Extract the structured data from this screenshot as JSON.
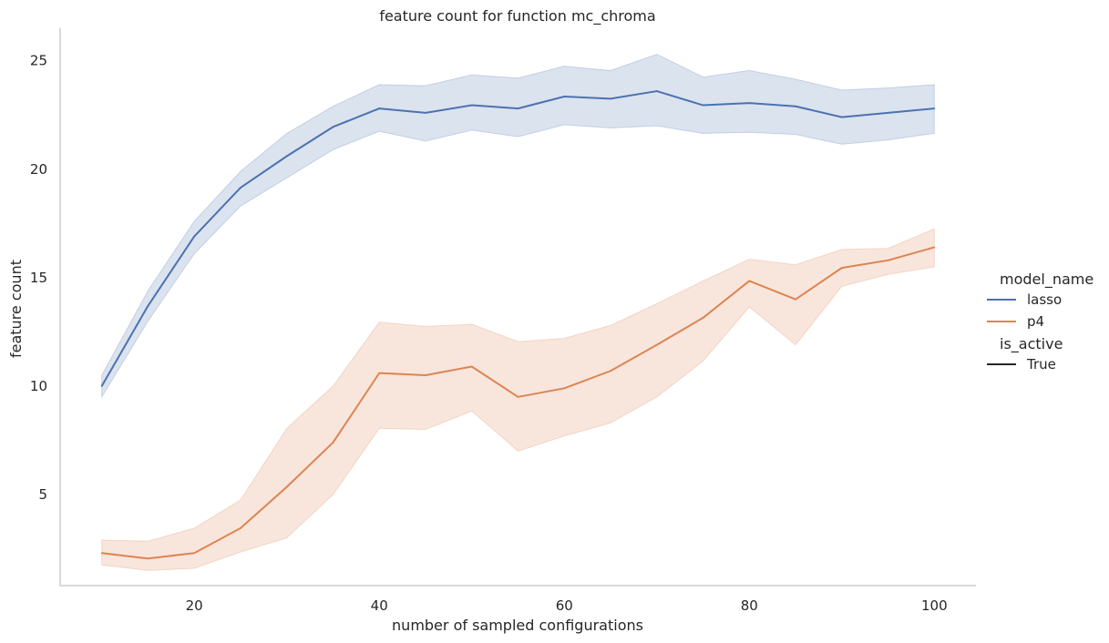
{
  "chart_data": {
    "type": "line",
    "title": "feature count for function mc_chroma",
    "xlabel": "number of sampled configurations",
    "ylabel": "feature count",
    "xlim": [
      5.5,
      104.5
    ],
    "ylim": [
      0.8,
      26.5
    ],
    "xticks": [
      20,
      40,
      60,
      80,
      100
    ],
    "yticks": [
      5,
      10,
      15,
      20,
      25
    ],
    "grid": false,
    "legend_placement": "right",
    "legend": {
      "hue_title": "model_name",
      "style_title": "is_active",
      "style_entries": [
        "True"
      ]
    },
    "x": [
      10,
      15,
      20,
      25,
      30,
      35,
      40,
      45,
      50,
      55,
      60,
      65,
      70,
      75,
      80,
      85,
      90,
      95,
      100
    ],
    "series": [
      {
        "name": "lasso",
        "color": "#4c72b0",
        "values": [
          10.0,
          13.7,
          16.9,
          19.15,
          20.6,
          21.95,
          22.8,
          22.6,
          22.95,
          22.8,
          23.35,
          23.25,
          23.6,
          22.95,
          23.05,
          22.9,
          22.4,
          22.6,
          22.8
        ],
        "ci_low": [
          9.5,
          13.0,
          16.1,
          18.3,
          19.6,
          20.9,
          21.75,
          21.3,
          21.8,
          21.5,
          22.05,
          21.9,
          22.0,
          21.65,
          21.7,
          21.6,
          21.15,
          21.35,
          21.65
        ],
        "ci_high": [
          10.5,
          14.4,
          17.6,
          19.9,
          21.65,
          22.9,
          23.9,
          23.85,
          24.35,
          24.2,
          24.75,
          24.55,
          25.3,
          24.25,
          24.55,
          24.15,
          23.65,
          23.75,
          23.9
        ]
      },
      {
        "name": "p4",
        "color": "#dd8452",
        "values": [
          2.3,
          2.05,
          2.3,
          3.45,
          5.35,
          7.4,
          10.6,
          10.5,
          10.9,
          9.5,
          9.9,
          10.7,
          11.9,
          13.15,
          14.85,
          14.0,
          15.45,
          15.8,
          16.4
        ],
        "ci_low": [
          1.75,
          1.5,
          1.6,
          2.35,
          3.0,
          5.0,
          8.05,
          8.0,
          8.85,
          7.0,
          7.7,
          8.3,
          9.5,
          11.15,
          13.65,
          11.9,
          14.6,
          15.15,
          15.5
        ],
        "ci_high": [
          2.9,
          2.85,
          3.45,
          4.75,
          8.05,
          10.0,
          12.95,
          12.75,
          12.85,
          12.05,
          12.2,
          12.8,
          13.8,
          14.85,
          15.85,
          15.6,
          16.3,
          16.35,
          17.25
        ]
      }
    ]
  }
}
